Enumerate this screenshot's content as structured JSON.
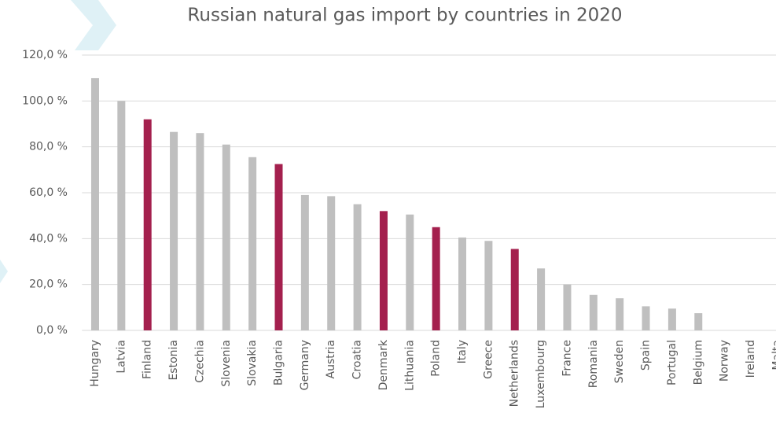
{
  "chart_data": {
    "type": "bar",
    "title": "Russian natural gas import by countries in 2020",
    "categories": [
      "Hungary",
      "Latvia",
      "Finland",
      "Estonia",
      "Czechia",
      "Slovenia",
      "Slovakia",
      "Bulgaria",
      "Germany",
      "Austria",
      "Croatia",
      "Denmark",
      "Lithuania",
      "Poland",
      "Italy",
      "Greece",
      "Netherlands",
      "Luxembourg",
      "France",
      "Romania",
      "Sweden",
      "Spain",
      "Portugal",
      "Belgium",
      "Norway",
      "Ireland",
      "Malta"
    ],
    "values": [
      110,
      100,
      92,
      86.5,
      86,
      81,
      75.5,
      72.5,
      59,
      58.5,
      55,
      52,
      50.5,
      45,
      40.5,
      39,
      35.5,
      27,
      20,
      15.5,
      14,
      10.5,
      9.5,
      7.5,
      0,
      0,
      0
    ],
    "colors": [
      "#bfbfbf",
      "#bfbfbf",
      "#a4204e",
      "#bfbfbf",
      "#bfbfbf",
      "#bfbfbf",
      "#bfbfbf",
      "#a4204e",
      "#bfbfbf",
      "#bfbfbf",
      "#bfbfbf",
      "#a4204e",
      "#bfbfbf",
      "#a4204e",
      "#bfbfbf",
      "#bfbfbf",
      "#a4204e",
      "#bfbfbf",
      "#bfbfbf",
      "#bfbfbf",
      "#bfbfbf",
      "#bfbfbf",
      "#bfbfbf",
      "#bfbfbf",
      "#bfbfbf",
      "#bfbfbf",
      "#bfbfbf"
    ],
    "ylim": [
      0,
      120
    ],
    "yticks": [
      {
        "value": 0,
        "label": "0,0 %"
      },
      {
        "value": 20,
        "label": "20,0 %"
      },
      {
        "value": 40,
        "label": "40,0 %"
      },
      {
        "value": 60,
        "label": "60,0 %"
      },
      {
        "value": 80,
        "label": "80,0 %"
      },
      {
        "value": 100,
        "label": "100,0 %"
      },
      {
        "value": 120,
        "label": "120,0 %"
      }
    ],
    "grid": true
  }
}
